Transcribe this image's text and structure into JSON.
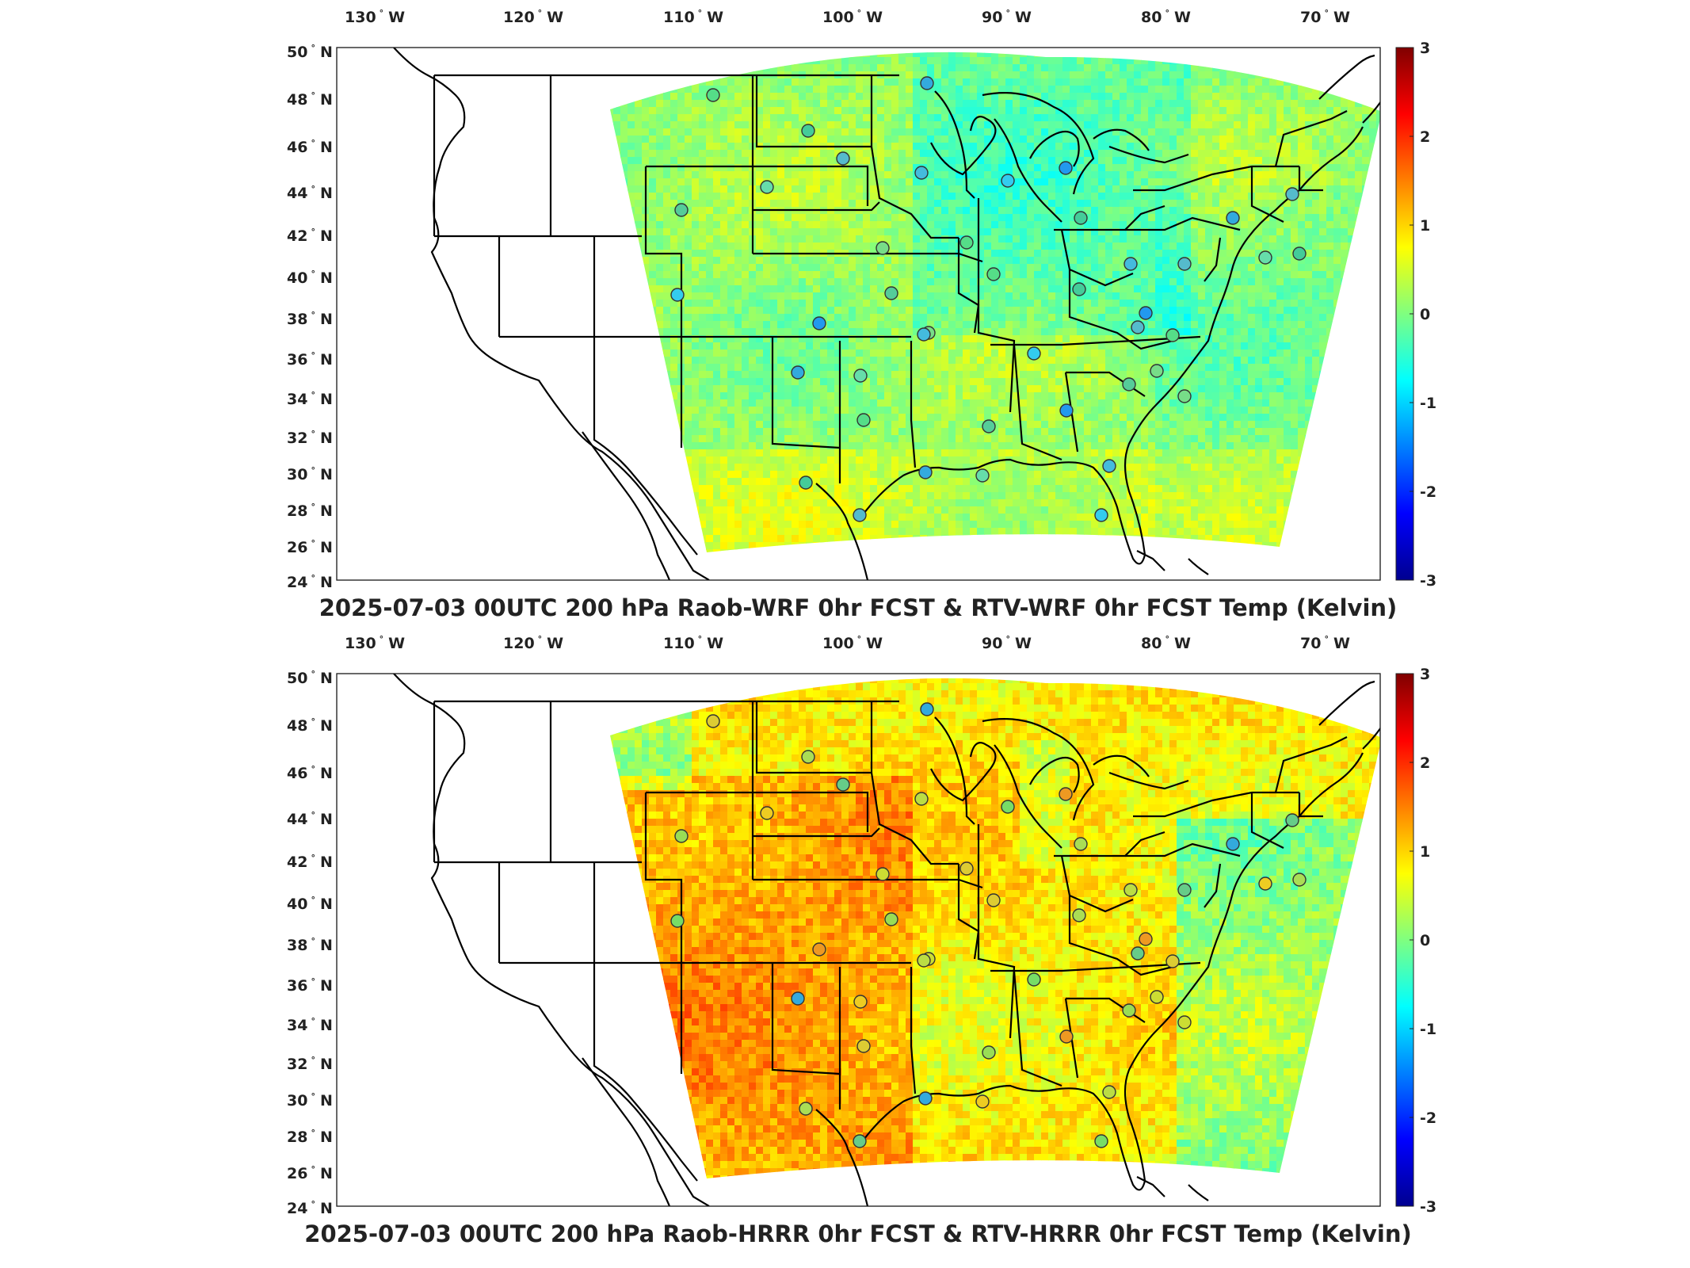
{
  "panels": [
    {
      "title": "2025-07-03 00UTC 200 hPa Raob-WRF 0hr FCST & RTV-WRF 0hr FCST Temp (Kelvin)",
      "field_style": "wrf",
      "station_colors": [
        "#55dd88",
        "#44cc99",
        "#55bbcc",
        "#33aadd",
        "#66ddaa",
        "#44bbdd",
        "#33ccee",
        "#2299ee",
        "#55cc99",
        "#77dd88"
      ]
    },
    {
      "title": "2025-07-03 00UTC 200 hPa Raob-HRRR 0hr FCST & RTV-HRRR 0hr FCST Temp (Kelvin)",
      "field_style": "hrrr",
      "station_colors": [
        "#ddcc33",
        "#aadd55",
        "#66cc88",
        "#33aadd",
        "#eecc22",
        "#bbdd44",
        "#77dd66",
        "#ee9922",
        "#99dd55",
        "#ccdd33"
      ]
    }
  ],
  "lon_labels": [
    "130",
    "120",
    "110",
    "100",
    "90",
    "80",
    "70"
  ],
  "lon_hemisphere": "W",
  "lat_labels": [
    "50",
    "48",
    "46",
    "44",
    "42",
    "40",
    "38",
    "36",
    "34",
    "32",
    "30",
    "28",
    "26",
    "24"
  ],
  "lat_hemisphere": "N",
  "degree_symbol": "°",
  "colorbar": {
    "labels": [
      "3",
      "2",
      "1",
      "0",
      "-1",
      "-2",
      "-3"
    ],
    "range": [
      -3,
      3
    ],
    "colormap": "jet"
  }
}
